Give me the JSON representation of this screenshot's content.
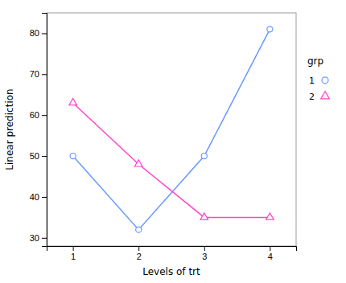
{
  "chart_data": {
    "type": "line",
    "xlabel": "Levels of trt",
    "ylabel": "Linear prediction",
    "legend_title": "grp",
    "x": [
      1,
      2,
      3,
      4
    ],
    "series": [
      {
        "name": "1",
        "color": "#6699FF",
        "marker": "circle",
        "values": [
          50,
          32,
          50,
          81
        ]
      },
      {
        "name": "2",
        "color": "#FF44CC",
        "marker": "triangle",
        "values": [
          63,
          48,
          35,
          35
        ]
      }
    ],
    "xlim": [
      0.6,
      4.4
    ],
    "ylim": [
      28,
      85
    ],
    "xticks": [
      1,
      2,
      3,
      4
    ],
    "yticks": [
      30,
      40,
      50,
      60,
      70,
      80
    ],
    "grid": false,
    "legend": "right"
  }
}
